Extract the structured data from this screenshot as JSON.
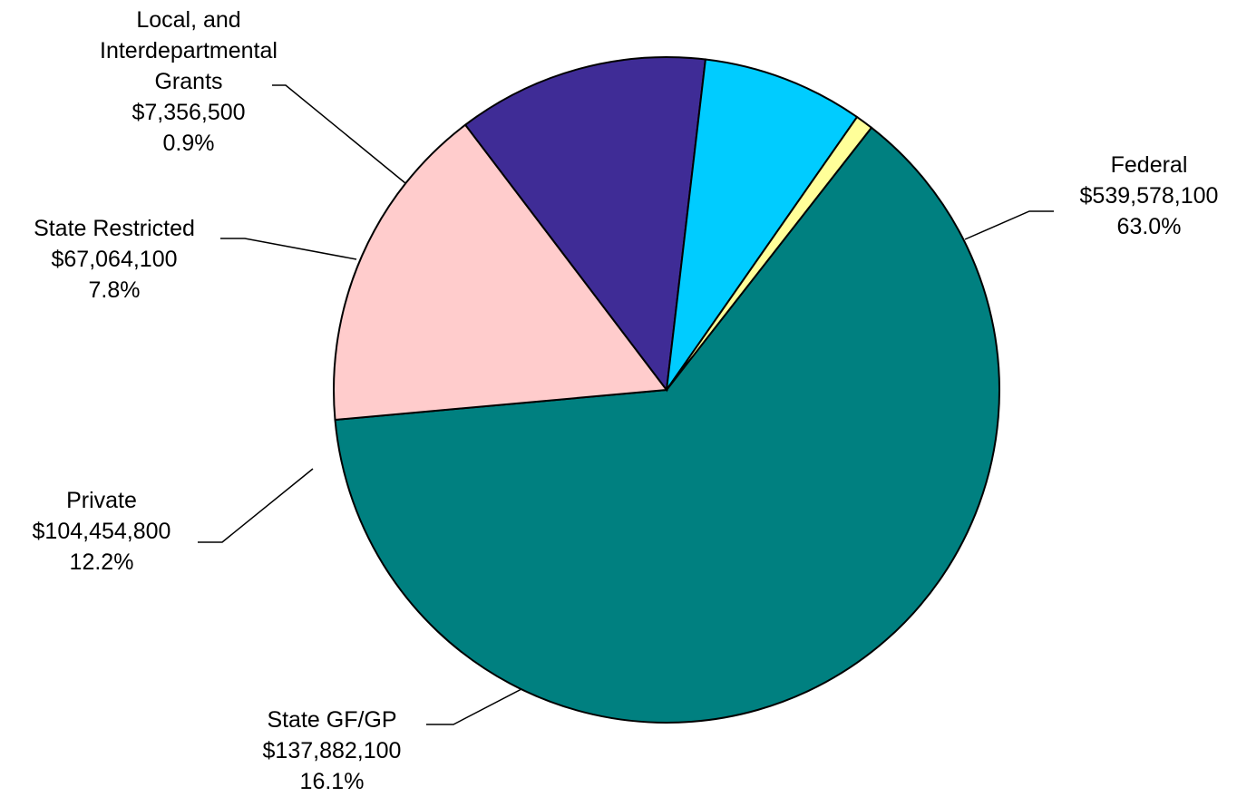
{
  "chart_data": {
    "type": "pie",
    "slices": [
      {
        "label_lines": [
          "Federal"
        ],
        "amount": "$539,578,100",
        "percent": "63.0%",
        "value": 539578100,
        "color": "#008080"
      },
      {
        "label_lines": [
          "State GF/GP"
        ],
        "amount": "$137,882,100",
        "percent": "16.1%",
        "value": 137882100,
        "color": "#FFCCCC"
      },
      {
        "label_lines": [
          "Private"
        ],
        "amount": "$104,454,800",
        "percent": "12.2%",
        "value": 104454800,
        "color": "#3F2C96"
      },
      {
        "label_lines": [
          "State Restricted"
        ],
        "amount": "$67,064,100",
        "percent": "7.8%",
        "value": 67064100,
        "color": "#00CCFF"
      },
      {
        "label_lines": [
          "Local, and",
          "Interdepartmental",
          "Grants"
        ],
        "amount": "$7,356,500",
        "percent": "0.9%",
        "value": 7356500,
        "color": "#FFFF99"
      }
    ]
  }
}
